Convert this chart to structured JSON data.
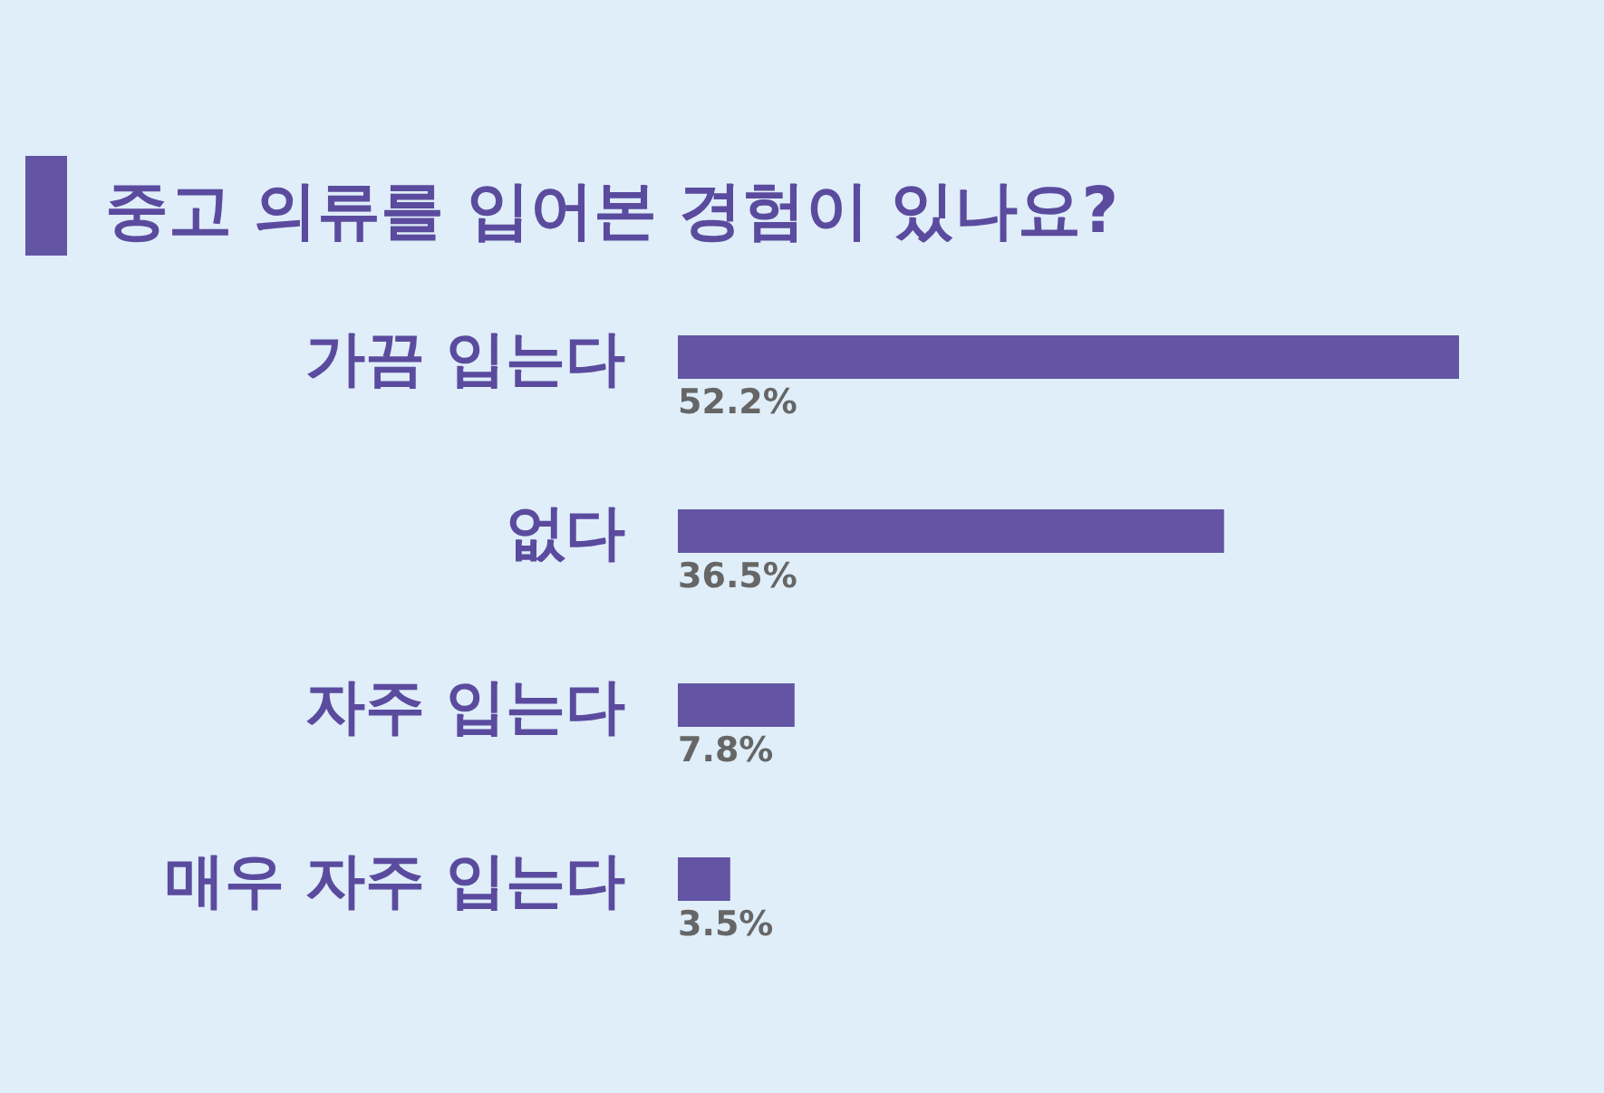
{
  "chart_data": {
    "type": "bar",
    "orientation": "horizontal",
    "title": "중고 의류를 입어본 경험이 있나요?",
    "categories": [
      "가끔 입는다",
      "없다",
      "자주 입는다",
      "매우 자주 입는다"
    ],
    "values": [
      52.2,
      36.5,
      7.8,
      3.5
    ],
    "value_labels": [
      "52.2%",
      "36.5%",
      "7.8%",
      "3.5%"
    ],
    "color": "#6454a4"
  }
}
